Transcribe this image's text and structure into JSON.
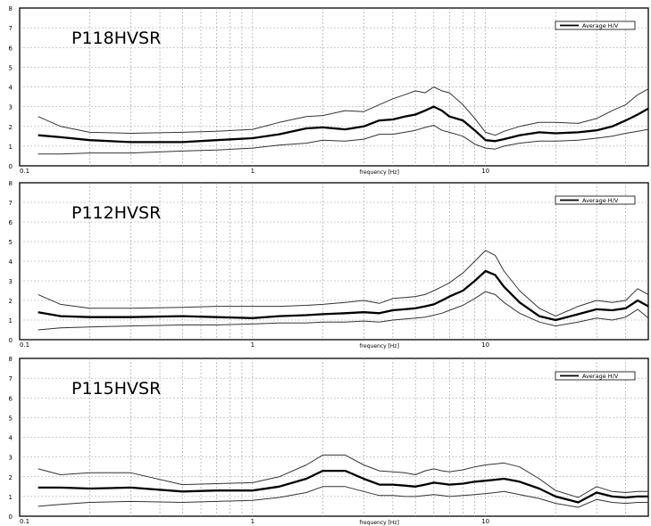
{
  "chart_data": [
    {
      "type": "line",
      "title": "P118HVSR",
      "xlabel": "frequency [Hz]",
      "ylabel": "",
      "xscale": "log",
      "xlim": [
        0.1,
        50
      ],
      "ylim": [
        0,
        8
      ],
      "xticks": [
        "0.1",
        "1",
        "10"
      ],
      "yticks": [
        "0",
        "1",
        "2",
        "3",
        "4",
        "5",
        "6",
        "7",
        "8"
      ],
      "grid": true,
      "legend": {
        "position": "top-right",
        "entries": [
          "Average H/V"
        ]
      },
      "x": [
        0.12,
        0.15,
        0.2,
        0.3,
        0.5,
        0.7,
        1,
        1.3,
        1.7,
        2,
        2.5,
        3,
        3.5,
        4,
        4.5,
        5,
        5.5,
        6,
        6.5,
        7,
        8,
        9,
        10,
        11,
        12,
        14,
        17,
        20,
        25,
        30,
        35,
        40,
        45,
        50
      ],
      "series": [
        {
          "name": "Average H/V",
          "values": [
            1.55,
            1.45,
            1.3,
            1.2,
            1.2,
            1.3,
            1.4,
            1.6,
            1.9,
            1.95,
            1.85,
            2.0,
            2.3,
            2.35,
            2.5,
            2.6,
            2.8,
            3.0,
            2.8,
            2.5,
            2.3,
            1.8,
            1.3,
            1.25,
            1.35,
            1.55,
            1.7,
            1.65,
            1.7,
            1.8,
            2.0,
            2.3,
            2.6,
            2.9
          ]
        },
        {
          "values": [
            2.5,
            2.0,
            1.7,
            1.65,
            1.7,
            1.75,
            1.85,
            2.2,
            2.5,
            2.55,
            2.8,
            2.75,
            3.1,
            3.4,
            3.6,
            3.8,
            3.7,
            4.0,
            3.8,
            3.7,
            3.1,
            2.4,
            1.7,
            1.55,
            1.75,
            2.0,
            2.2,
            2.2,
            2.15,
            2.4,
            2.8,
            3.1,
            3.6,
            3.9
          ]
        },
        {
          "values": [
            0.6,
            0.6,
            0.65,
            0.65,
            0.75,
            0.8,
            0.9,
            1.05,
            1.15,
            1.3,
            1.25,
            1.35,
            1.6,
            1.6,
            1.7,
            1.8,
            1.95,
            2.05,
            1.8,
            1.7,
            1.5,
            1.1,
            0.9,
            0.85,
            1.0,
            1.15,
            1.25,
            1.25,
            1.3,
            1.4,
            1.5,
            1.65,
            1.75,
            1.85
          ]
        }
      ]
    },
    {
      "type": "line",
      "title": "P112HVSR",
      "xlabel": "frequency [Hz]",
      "ylabel": "",
      "xscale": "log",
      "xlim": [
        0.1,
        50
      ],
      "ylim": [
        0,
        8
      ],
      "xticks": [
        "0.1",
        "1",
        "10"
      ],
      "yticks": [
        "0",
        "1",
        "2",
        "3",
        "4",
        "5",
        "6",
        "7",
        "8"
      ],
      "grid": true,
      "legend": {
        "position": "top-right",
        "entries": [
          "Average H/V"
        ]
      },
      "x": [
        0.12,
        0.15,
        0.2,
        0.3,
        0.5,
        0.7,
        1,
        1.3,
        1.7,
        2,
        2.5,
        3,
        3.5,
        4,
        4.5,
        5,
        5.5,
        6,
        6.5,
        7,
        8,
        9,
        10,
        11,
        12,
        14,
        17,
        20,
        25,
        30,
        35,
        40,
        45,
        50
      ],
      "series": [
        {
          "name": "Average H/V",
          "values": [
            1.4,
            1.2,
            1.15,
            1.15,
            1.2,
            1.15,
            1.1,
            1.2,
            1.25,
            1.3,
            1.35,
            1.4,
            1.35,
            1.5,
            1.55,
            1.6,
            1.7,
            1.8,
            2.0,
            2.2,
            2.5,
            3.0,
            3.5,
            3.3,
            2.7,
            1.9,
            1.2,
            1.0,
            1.3,
            1.55,
            1.5,
            1.6,
            2.0,
            1.7
          ]
        },
        {
          "values": [
            2.3,
            1.8,
            1.6,
            1.6,
            1.65,
            1.7,
            1.7,
            1.7,
            1.75,
            1.8,
            1.9,
            2.0,
            1.85,
            2.1,
            2.15,
            2.2,
            2.3,
            2.5,
            2.7,
            2.9,
            3.4,
            4.0,
            4.55,
            4.3,
            3.5,
            2.5,
            1.6,
            1.2,
            1.7,
            2.0,
            1.9,
            2.0,
            2.6,
            2.3
          ]
        },
        {
          "values": [
            0.5,
            0.6,
            0.65,
            0.7,
            0.75,
            0.75,
            0.8,
            0.85,
            0.85,
            0.9,
            0.9,
            0.95,
            0.9,
            1.0,
            1.05,
            1.1,
            1.15,
            1.25,
            1.35,
            1.5,
            1.75,
            2.1,
            2.45,
            2.3,
            1.9,
            1.35,
            0.9,
            0.7,
            0.9,
            1.1,
            1.0,
            1.15,
            1.55,
            1.1
          ]
        }
      ]
    },
    {
      "type": "line",
      "title": "P115HVSR",
      "xlabel": "frequency [Hz]",
      "ylabel": "",
      "xscale": "log",
      "xlim": [
        0.1,
        50
      ],
      "ylim": [
        0,
        8
      ],
      "xticks": [
        "0.1",
        "1",
        "10"
      ],
      "yticks": [
        "0",
        "1",
        "2",
        "3",
        "4",
        "5",
        "6",
        "7",
        "8"
      ],
      "grid": true,
      "legend": {
        "position": "top-right",
        "entries": [
          "Average H/V"
        ]
      },
      "x": [
        0.12,
        0.15,
        0.2,
        0.3,
        0.5,
        0.7,
        1,
        1.3,
        1.7,
        2,
        2.5,
        3,
        3.5,
        4,
        4.5,
        5,
        5.5,
        6,
        6.5,
        7,
        8,
        9,
        10,
        11,
        12,
        14,
        17,
        20,
        25,
        30,
        35,
        40,
        45,
        50
      ],
      "series": [
        {
          "name": "Average H/V",
          "values": [
            1.45,
            1.45,
            1.4,
            1.45,
            1.25,
            1.3,
            1.3,
            1.5,
            1.9,
            2.3,
            2.3,
            1.9,
            1.6,
            1.6,
            1.55,
            1.5,
            1.6,
            1.7,
            1.65,
            1.6,
            1.65,
            1.75,
            1.8,
            1.85,
            1.9,
            1.75,
            1.4,
            1.0,
            0.7,
            1.2,
            1.0,
            0.95,
            1.0,
            1.0
          ]
        },
        {
          "values": [
            2.4,
            2.1,
            2.2,
            2.2,
            1.6,
            1.65,
            1.7,
            2.0,
            2.6,
            3.1,
            3.1,
            2.6,
            2.3,
            2.25,
            2.2,
            2.1,
            2.3,
            2.4,
            2.3,
            2.25,
            2.35,
            2.5,
            2.6,
            2.65,
            2.7,
            2.5,
            1.9,
            1.3,
            0.95,
            1.5,
            1.25,
            1.2,
            1.25,
            1.25
          ]
        },
        {
          "values": [
            0.5,
            0.6,
            0.7,
            0.75,
            0.7,
            0.75,
            0.8,
            0.95,
            1.2,
            1.5,
            1.5,
            1.25,
            1.05,
            1.05,
            1.0,
            1.0,
            1.05,
            1.1,
            1.05,
            1.0,
            1.05,
            1.1,
            1.15,
            1.2,
            1.25,
            1.1,
            0.9,
            0.65,
            0.45,
            0.85,
            0.7,
            0.65,
            0.7,
            0.7
          ]
        }
      ]
    }
  ]
}
